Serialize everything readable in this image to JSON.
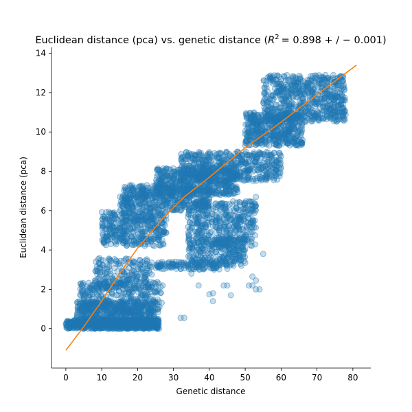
{
  "chart_data": {
    "type": "scatter",
    "title_prefix": "Euclidean distance (pca) vs. genetic distance (",
    "title_math": "R",
    "title_sup": "2",
    "title_suffix": "= 0.898 + / − 0.001)",
    "xlabel": "Genetic distance",
    "ylabel": "Euclidean distance (pca)",
    "xlim": [
      -4,
      85
    ],
    "ylim": [
      -2,
      14.3
    ],
    "xticks": [
      0,
      10,
      20,
      30,
      40,
      50,
      60,
      70,
      80
    ],
    "yticks": [
      0,
      2,
      4,
      6,
      8,
      10,
      12,
      14
    ],
    "grid": false,
    "legend": "none",
    "colors": {
      "points": "#1f77b4",
      "fit": "#ff7f0e"
    },
    "clusters": [
      {
        "x": [
          0,
          26
        ],
        "y": [
          0,
          0.5
        ],
        "n": 700
      },
      {
        "x": [
          3,
          25
        ],
        "y": [
          0.3,
          1.4
        ],
        "n": 450
      },
      {
        "x": [
          4,
          27
        ],
        "y": [
          0.8,
          2.4
        ],
        "n": 300
      },
      {
        "x": [
          8,
          24
        ],
        "y": [
          2.0,
          3.6
        ],
        "n": 220
      },
      {
        "x": [
          10,
          28
        ],
        "y": [
          4.2,
          6.0
        ],
        "n": 420
      },
      {
        "x": [
          15,
          40
        ],
        "y": [
          6.0,
          7.3
        ],
        "n": 480
      },
      {
        "x": [
          25,
          48
        ],
        "y": [
          6.8,
          8.2
        ],
        "n": 500
      },
      {
        "x": [
          32,
          60
        ],
        "y": [
          7.5,
          9.0
        ],
        "n": 520
      },
      {
        "x": [
          34,
          53
        ],
        "y": [
          4.2,
          6.5
        ],
        "n": 420
      },
      {
        "x": [
          34,
          50
        ],
        "y": [
          3.2,
          4.6
        ],
        "n": 260
      },
      {
        "x": [
          25,
          45
        ],
        "y": [
          3.0,
          3.4
        ],
        "n": 120
      },
      {
        "x": [
          50,
          66
        ],
        "y": [
          9.3,
          11.0
        ],
        "n": 480
      },
      {
        "x": [
          55,
          78
        ],
        "y": [
          10.5,
          12.9
        ],
        "n": 650
      }
    ],
    "outliers": [
      {
        "x": 32,
        "y": 0.55
      },
      {
        "x": 33,
        "y": 0.55
      },
      {
        "x": 35,
        "y": 2.8
      },
      {
        "x": 37,
        "y": 2.2
      },
      {
        "x": 40,
        "y": 1.75
      },
      {
        "x": 41,
        "y": 1.8
      },
      {
        "x": 41,
        "y": 1.4
      },
      {
        "x": 44,
        "y": 2.2
      },
      {
        "x": 45,
        "y": 2.2
      },
      {
        "x": 46,
        "y": 1.7
      },
      {
        "x": 51,
        "y": 2.2
      },
      {
        "x": 52,
        "y": 2.65
      },
      {
        "x": 53,
        "y": 2.0
      },
      {
        "x": 53,
        "y": 2.45
      },
      {
        "x": 54,
        "y": 2.0
      },
      {
        "x": 52,
        "y": 2.2
      },
      {
        "x": 55,
        "y": 3.8
      },
      {
        "x": 53,
        "y": 6.7
      },
      {
        "x": 47,
        "y": 3.9
      },
      {
        "x": 50,
        "y": 9.9
      }
    ],
    "fit_line": {
      "x": [
        0,
        5,
        10,
        15,
        20,
        27,
        33,
        40,
        50,
        60,
        70,
        81
      ],
      "y": [
        -1.1,
        0.1,
        1.4,
        2.8,
        4.1,
        5.6,
        6.7,
        7.7,
        9.2,
        10.5,
        11.9,
        13.4
      ]
    }
  }
}
